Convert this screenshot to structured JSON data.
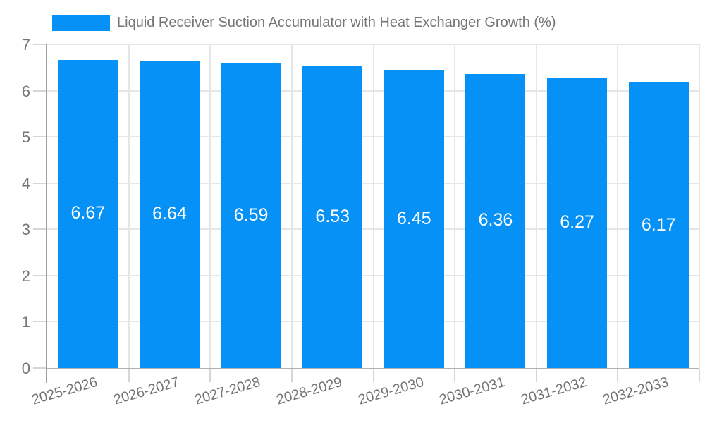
{
  "chart_data": {
    "type": "bar",
    "title": "Liquid Receiver Suction Accumulator with Heat Exchanger Growth (%)",
    "categories": [
      "2025-2026",
      "2026-2027",
      "2027-2028",
      "2028-2029",
      "2029-2030",
      "2030-2031",
      "2031-2032",
      "2032-2033"
    ],
    "values": [
      6.67,
      6.64,
      6.59,
      6.53,
      6.45,
      6.36,
      6.27,
      6.17
    ],
    "value_labels": [
      "6.67",
      "6.64",
      "6.59",
      "6.53",
      "6.45",
      "6.36",
      "6.27",
      "6.17"
    ],
    "xlabel": "",
    "ylabel": "",
    "ylim": [
      0,
      7
    ],
    "yticks": [
      0,
      1,
      2,
      3,
      4,
      5,
      6,
      7
    ],
    "grid": true,
    "legend_position": "top",
    "colors": {
      "bar": "#0591F5",
      "bar_value_text": "#ffffff",
      "axis_text": "#757575",
      "title_text": "#757575",
      "gridline": "#E6E6E6",
      "minor_tick": "#D6D6D6",
      "axis_line": "#9E9E9E",
      "baseline": "#B0B0B0",
      "background": "#ffffff"
    }
  }
}
